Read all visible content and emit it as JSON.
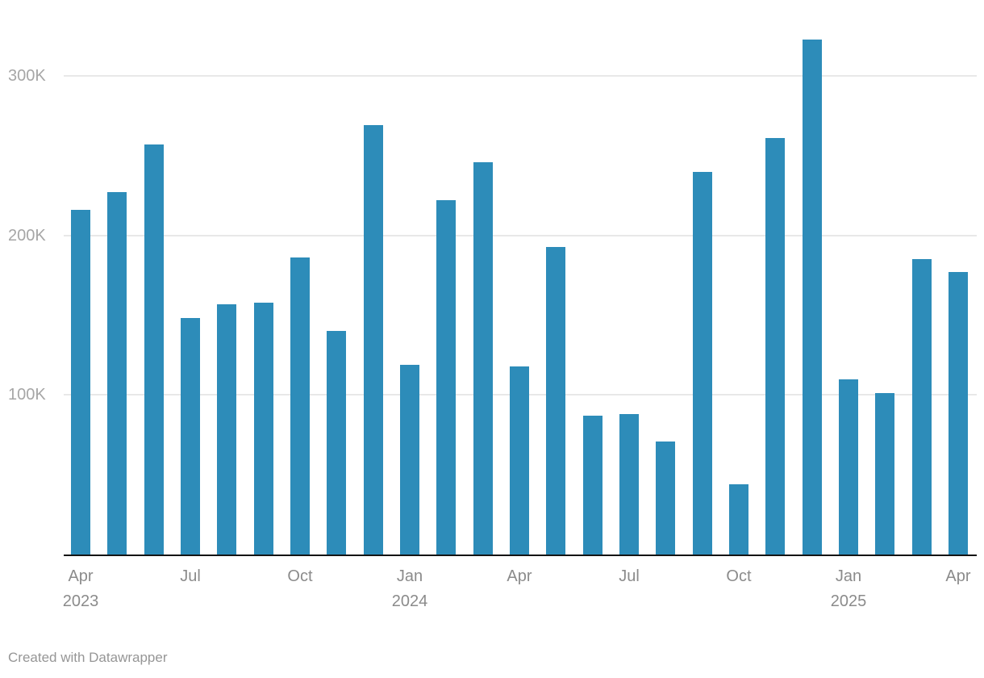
{
  "chart_data": {
    "type": "bar",
    "title": "",
    "xlabel": "",
    "ylabel": "",
    "grid": true,
    "legend": false,
    "bar_color": "#2d8cb9",
    "ylim": [
      0,
      340000
    ],
    "months": [
      "2023-04",
      "2023-05",
      "2023-06",
      "2023-07",
      "2023-08",
      "2023-09",
      "2023-10",
      "2023-11",
      "2023-12",
      "2024-01",
      "2024-02",
      "2024-03",
      "2024-04",
      "2024-05",
      "2024-06",
      "2024-07",
      "2024-08",
      "2024-09",
      "2024-10",
      "2024-11",
      "2024-12",
      "2025-01",
      "2025-02",
      "2025-03",
      "2025-04"
    ],
    "values": [
      216000,
      227000,
      257000,
      148000,
      157000,
      158000,
      186000,
      140000,
      269000,
      119000,
      222000,
      246000,
      118000,
      193000,
      87000,
      88000,
      71000,
      240000,
      44000,
      261000,
      323000,
      110000,
      101000,
      185000,
      177000
    ],
    "y_ticks": [
      {
        "value": 100000,
        "label": "100K"
      },
      {
        "value": 200000,
        "label": "200K"
      },
      {
        "value": 300000,
        "label": "300K"
      }
    ],
    "x_ticks": [
      {
        "index": 0,
        "label": "Apr",
        "year": "2023"
      },
      {
        "index": 3,
        "label": "Jul",
        "year": ""
      },
      {
        "index": 6,
        "label": "Oct",
        "year": ""
      },
      {
        "index": 9,
        "label": "Jan",
        "year": "2024"
      },
      {
        "index": 12,
        "label": "Apr",
        "year": ""
      },
      {
        "index": 15,
        "label": "Jul",
        "year": ""
      },
      {
        "index": 18,
        "label": "Oct",
        "year": ""
      },
      {
        "index": 21,
        "label": "Jan",
        "year": "2025"
      },
      {
        "index": 24,
        "label": "Apr",
        "year": ""
      }
    ]
  },
  "colors": {
    "bar": "#2d8cb9",
    "gridline": "#e8e8e8",
    "axis_line": "#141414",
    "y_label": "#a6a6a6",
    "x_label": "#8b8b8b",
    "attribution": "#969696"
  },
  "footer": {
    "attribution": "Created with Datawrapper"
  }
}
